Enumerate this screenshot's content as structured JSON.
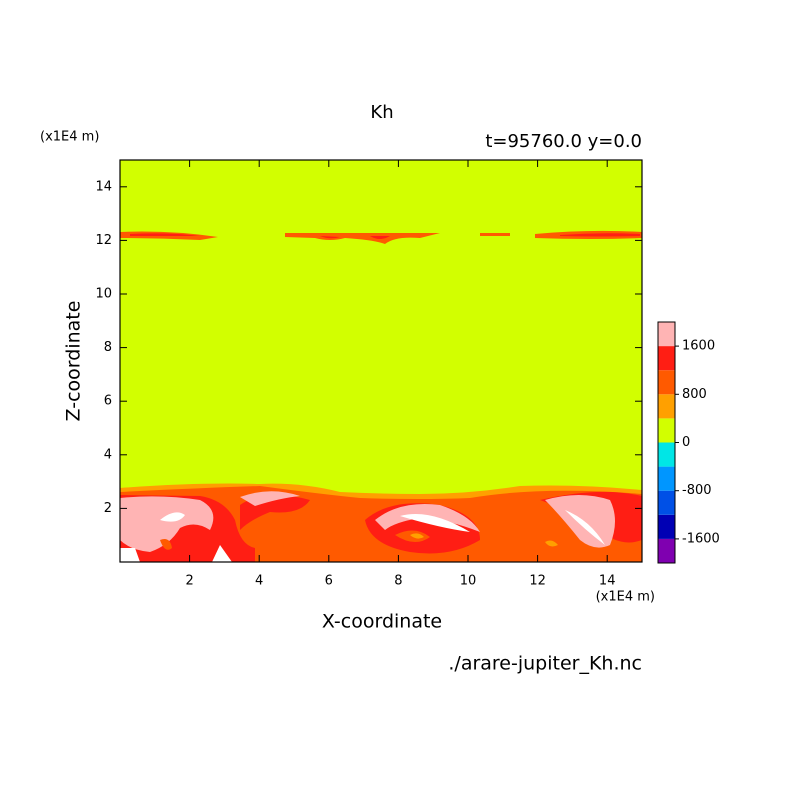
{
  "chart_data": {
    "type": "contour",
    "title": "Kh",
    "subtitle": "t=95760.0 y=0.0",
    "x_label": "X-coordinate",
    "y_label": "Z-coordinate",
    "x_unit": "(x1E4 m)",
    "y_unit": "(x1E4 m)",
    "source": "./arare-jupiter_Kh.nc",
    "xlim": [
      0,
      15
    ],
    "ylim": [
      0,
      15
    ],
    "xticks": [
      2,
      4,
      6,
      8,
      10,
      12,
      14
    ],
    "yticks": [
      2,
      4,
      6,
      8,
      10,
      12,
      14
    ],
    "levels": [
      -2000,
      -1600,
      -1200,
      -800,
      -400,
      0,
      400,
      800,
      1200,
      1600,
      2000
    ],
    "colors": [
      "#7f00b0",
      "#0000b4",
      "#0050e6",
      "#0096ff",
      "#00e6e6",
      "#d2ff00",
      "#ffa000",
      "#ff5a00",
      "#ff1e14",
      "#ffb4b4"
    ],
    "colorbar_ticks": [
      -1600,
      -800,
      0,
      800,
      1600
    ]
  }
}
